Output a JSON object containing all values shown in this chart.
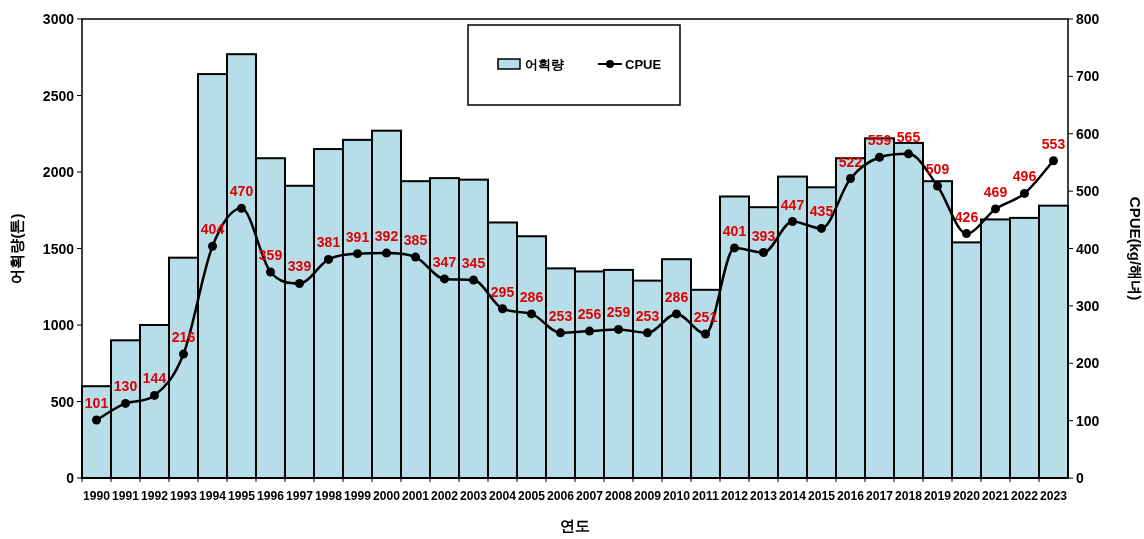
{
  "chart_data": {
    "type": "bar",
    "xlabel": "연도",
    "ylabel": "어획량(톤)",
    "y2label": "CPUE(kg/해녀)",
    "categories": [
      "1990",
      "1991",
      "1992",
      "1993",
      "1994",
      "1995",
      "1996",
      "1997",
      "1998",
      "1999",
      "2000",
      "2001",
      "2002",
      "2003",
      "2004",
      "2005",
      "2006",
      "2007",
      "2008",
      "2009",
      "2010",
      "2011",
      "2012",
      "2013",
      "2014",
      "2015",
      "2016",
      "2017",
      "2018",
      "2019",
      "2020",
      "2021",
      "2022",
      "2023"
    ],
    "series": [
      {
        "name": "어획량",
        "color": "#b7dde8",
        "values": [
          600,
          900,
          1000,
          1440,
          2640,
          2770,
          2090,
          1910,
          2150,
          2210,
          2270,
          1940,
          1960,
          1950,
          1670,
          1580,
          1370,
          1350,
          1360,
          1290,
          1430,
          1230,
          1840,
          1770,
          1970,
          1900,
          2090,
          2220,
          2190,
          1940,
          1540,
          1690,
          1700,
          1780
        ]
      },
      {
        "name": "CPUE",
        "type": "line",
        "axis": "y2",
        "color": "#000000",
        "marker": "circle",
        "values": [
          101,
          130,
          144,
          216,
          404,
          470,
          359,
          339,
          381,
          391,
          392,
          385,
          347,
          345,
          295,
          286,
          253,
          256,
          259,
          253,
          286,
          251,
          401,
          393,
          447,
          435,
          522,
          559,
          565,
          509,
          426,
          469,
          496,
          553
        ],
        "value_labels": [
          "101",
          "130",
          "144",
          "216",
          "404",
          "470",
          "359",
          "339",
          "381",
          "391",
          "392",
          "385",
          "347",
          "345",
          "295",
          "286",
          "253",
          "256",
          "259",
          "253",
          "286",
          "251",
          "401",
          "393",
          "447",
          "435",
          "522",
          "559",
          "565",
          "509",
          "426",
          "469",
          "496",
          "553"
        ]
      }
    ],
    "ylim": [
      0,
      3000
    ],
    "yticks": [
      0,
      500,
      1000,
      1500,
      2000,
      2500,
      3000
    ],
    "y2lim": [
      0,
      800
    ],
    "y2ticks": [
      0,
      100,
      200,
      300,
      400,
      500,
      600,
      700,
      800
    ],
    "grid": false,
    "legend": "top"
  }
}
